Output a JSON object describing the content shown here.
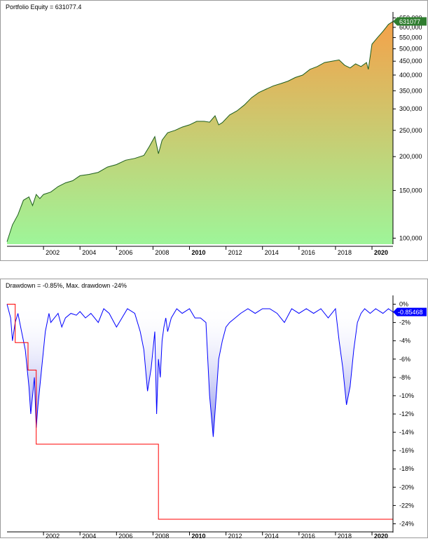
{
  "chart_data": [
    {
      "type": "area",
      "title": "Portfolio Equity = 631077.4",
      "y_scale": "log",
      "ylim": [
        95000,
        660000
      ],
      "xlim": [
        2000.0,
        2021.15
      ],
      "y_ticks": [
        100000,
        150000,
        200000,
        250000,
        300000,
        350000,
        400000,
        450000,
        500000,
        550000,
        600000,
        650000
      ],
      "y_tick_labels": [
        "100,000",
        "150,000",
        "200,000",
        "250,000",
        "300,000",
        "350,000",
        "400,000",
        "450,000",
        "500,000",
        "550,000",
        "600,000",
        "650,000"
      ],
      "x_ticks": [
        2002,
        2004,
        2006,
        2008,
        2010,
        2012,
        2014,
        2016,
        2018,
        2020
      ],
      "x_tick_labels": [
        "2002",
        "2004",
        "2006",
        "2008",
        "2010",
        "2012",
        "2014",
        "2016",
        "2018",
        "2020"
      ],
      "bold_x_ticks": [
        "2010",
        "2020"
      ],
      "last_value_label": "631077",
      "colors": {
        "line": "#1d5e1d",
        "fill_top": "#f4a24a",
        "fill_bottom": "#9ef599",
        "label_bg": "#2f7d2f"
      },
      "series": [
        {
          "x": [
            2000.0,
            2000.3,
            2000.6,
            2000.9,
            2001.2,
            2001.4,
            2001.6,
            2001.8,
            2002.0,
            2002.4,
            2002.8,
            2003.2,
            2003.6,
            2004.0,
            2004.5,
            2005.0,
            2005.5,
            2006.0,
            2006.5,
            2007.0,
            2007.5,
            2007.8,
            2008.1,
            2008.3,
            2008.5,
            2008.8,
            2009.2,
            2009.6,
            2010.0,
            2010.4,
            2010.8,
            2011.1,
            2011.4,
            2011.6,
            2011.8,
            2012.2,
            2012.6,
            2013.0,
            2013.4,
            2013.8,
            2014.2,
            2014.6,
            2015.0,
            2015.4,
            2015.8,
            2016.2,
            2016.6,
            2017.0,
            2017.4,
            2017.8,
            2018.2,
            2018.5,
            2018.8,
            2019.1,
            2019.4,
            2019.7,
            2019.8,
            2020.0,
            2020.3,
            2020.6,
            2020.9,
            2021.15
          ],
          "y": [
            97000,
            112000,
            122000,
            138000,
            142000,
            132000,
            145000,
            140000,
            145000,
            148000,
            155000,
            160000,
            163000,
            170000,
            172000,
            175000,
            183000,
            187000,
            194000,
            197000,
            202000,
            218000,
            237000,
            205000,
            230000,
            245000,
            250000,
            257000,
            262000,
            270000,
            270000,
            268000,
            283000,
            262000,
            267000,
            285000,
            295000,
            310000,
            330000,
            345000,
            355000,
            365000,
            372000,
            380000,
            392000,
            400000,
            420000,
            430000,
            445000,
            450000,
            455000,
            435000,
            425000,
            440000,
            430000,
            445000,
            420000,
            520000,
            550000,
            580000,
            615000,
            631077
          ]
        }
      ]
    },
    {
      "type": "area",
      "title": "Drawdown = -0.85%, Max. drawdown -24%",
      "ylim": [
        -24.5,
        0.5
      ],
      "xlim": [
        2000.0,
        2021.15
      ],
      "y_ticks": [
        0,
        -2,
        -4,
        -6,
        -8,
        -10,
        -12,
        -14,
        -16,
        -18,
        -20,
        -22,
        -24
      ],
      "y_tick_labels": [
        "0%",
        "-2%",
        "-4%",
        "-6%",
        "-8%",
        "-10%",
        "-12%",
        "-14%",
        "-16%",
        "-18%",
        "-20%",
        "-22%",
        "-24%"
      ],
      "x_ticks": [
        2002,
        2004,
        2006,
        2008,
        2010,
        2012,
        2014,
        2016,
        2018,
        2020
      ],
      "x_tick_labels": [
        "2002",
        "2004",
        "2006",
        "2008",
        "2010",
        "2012",
        "2014",
        "2016",
        "2018",
        "2020"
      ],
      "bold_x_ticks": [
        "2010",
        "2020"
      ],
      "last_value_label": "-0.85468",
      "colors": {
        "line": "#0000ff",
        "fill": "#6e74e6",
        "max_dd_line": "#ff0000",
        "label_bg": "#0000ff"
      },
      "series": [
        {
          "name": "drawdown",
          "x": [
            2000.0,
            2000.2,
            2000.3,
            2000.45,
            2000.6,
            2000.8,
            2001.0,
            2001.1,
            2001.2,
            2001.3,
            2001.4,
            2001.5,
            2001.6,
            2001.7,
            2001.8,
            2001.9,
            2002.0,
            2002.1,
            2002.2,
            2002.3,
            2002.4,
            2002.6,
            2002.8,
            2003.0,
            2003.2,
            2003.5,
            2003.8,
            2004.0,
            2004.3,
            2004.6,
            2005.0,
            2005.3,
            2005.6,
            2006.0,
            2006.3,
            2006.6,
            2007.0,
            2007.3,
            2007.5,
            2007.7,
            2007.9,
            2008.1,
            2008.2,
            2008.3,
            2008.4,
            2008.5,
            2008.6,
            2008.7,
            2008.8,
            2009.0,
            2009.3,
            2009.6,
            2010.0,
            2010.3,
            2010.6,
            2010.9,
            2011.1,
            2011.3,
            2011.5,
            2011.6,
            2011.8,
            2012.0,
            2012.2,
            2012.5,
            2012.8,
            2013.2,
            2013.6,
            2014.0,
            2014.4,
            2014.8,
            2015.2,
            2015.6,
            2016.0,
            2016.4,
            2016.8,
            2017.2,
            2017.6,
            2018.0,
            2018.2,
            2018.4,
            2018.6,
            2018.8,
            2019.0,
            2019.2,
            2019.4,
            2019.6,
            2019.9,
            2020.2,
            2020.6,
            2020.9,
            2021.15
          ],
          "y": [
            0,
            -1.5,
            -4,
            -2,
            -1,
            -3,
            -5,
            -7,
            -9,
            -12,
            -10,
            -8,
            -13.5,
            -11,
            -9,
            -7,
            -5,
            -3,
            -2,
            -1,
            -2,
            -1.5,
            -1,
            -2.5,
            -1.5,
            -1,
            -1.2,
            -0.8,
            -1.5,
            -1,
            -2,
            -0.5,
            -1,
            -2.5,
            -1.5,
            -0.5,
            -1,
            -3,
            -5,
            -9.5,
            -7,
            -3,
            -12,
            -6,
            -8,
            -4,
            -2.5,
            -1.5,
            -3,
            -1.5,
            -0.5,
            -1,
            -0.5,
            -1.5,
            -1.5,
            -2,
            -10,
            -14.5,
            -9,
            -6,
            -4,
            -2.5,
            -2,
            -1.5,
            -1,
            -0.5,
            -1,
            -0.5,
            -0.5,
            -1,
            -2,
            -0.5,
            -1,
            -0.5,
            -1,
            -0.5,
            -1.5,
            -0.5,
            -4,
            -7,
            -11,
            -9,
            -5,
            -2,
            -1,
            -0.5,
            -1,
            -0.5,
            -1,
            -0.5,
            -0.85
          ]
        }
      ],
      "max_drawdown_series": {
        "name": "max drawdown",
        "x": [
          2000.0,
          2000.45,
          2000.45,
          2001.15,
          2001.15,
          2001.6,
          2001.6,
          2008.3,
          2008.3,
          2021.15
        ],
        "y": [
          0,
          0,
          -4.2,
          -4.2,
          -7.2,
          -7.2,
          -15.3,
          -15.3,
          -23.5,
          -23.5
        ]
      }
    }
  ]
}
